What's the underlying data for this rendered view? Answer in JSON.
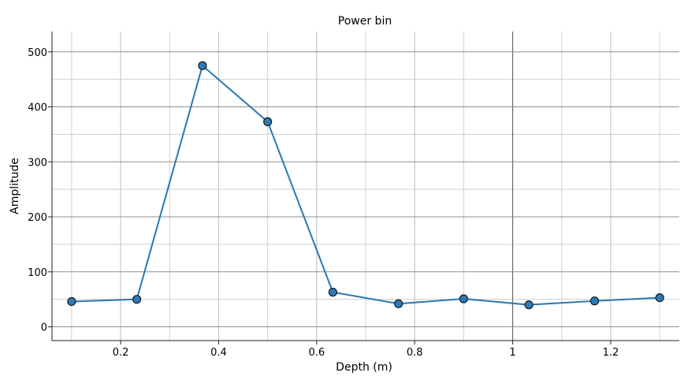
{
  "chart_data": {
    "type": "line",
    "title": "Power bin",
    "xlabel": "Depth (m)",
    "ylabel": "Amplitude",
    "xlim": [
      0.06,
      1.34
    ],
    "ylim": [
      -25,
      537
    ],
    "x_ticks": [
      0.2,
      0.4,
      0.6,
      0.8,
      1,
      1.2
    ],
    "x_tick_labels": [
      "0.2",
      "0.4",
      "0.6",
      "0.8",
      "1",
      "1.2"
    ],
    "y_ticks": [
      0,
      100,
      200,
      300,
      400,
      500
    ],
    "y_tick_labels": [
      "0",
      "100",
      "200",
      "300",
      "400",
      "500"
    ],
    "grid": true,
    "legend": "none",
    "series": [
      {
        "color": "#2878b5",
        "marker_color": "#2b7bb9",
        "x": [
          0.1,
          0.233,
          0.367,
          0.5,
          0.633,
          0.767,
          0.9,
          1.033,
          1.167,
          1.3
        ],
        "y": [
          46,
          50,
          475,
          373,
          63,
          42,
          51,
          40,
          47,
          53
        ]
      }
    ]
  }
}
